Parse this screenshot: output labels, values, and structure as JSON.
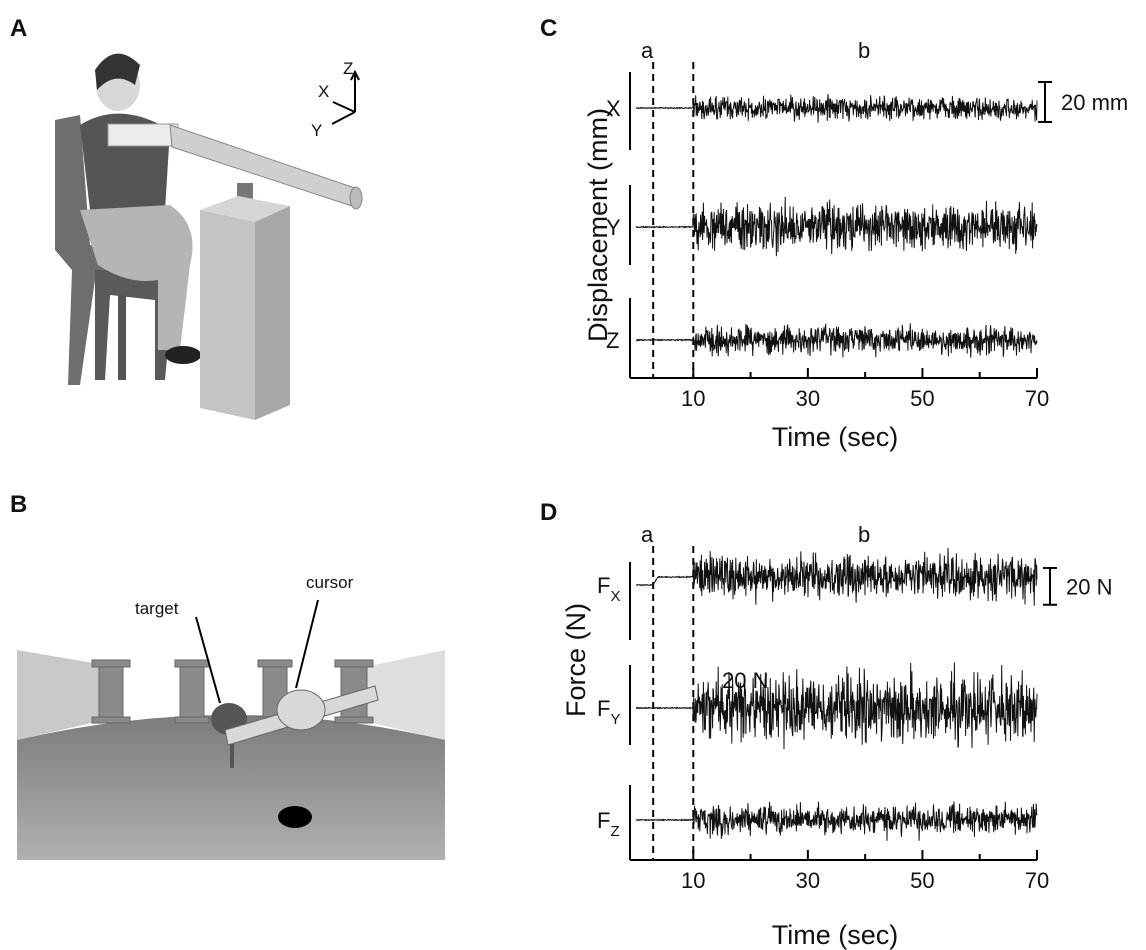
{
  "panels": {
    "A": {
      "label": "A",
      "axes": {
        "z": "Z",
        "x": "X",
        "y": "Y"
      }
    },
    "B": {
      "label": "B",
      "target": "target",
      "cursor": "cursor"
    },
    "C": {
      "label": "C",
      "period_a": "a",
      "period_b": "b",
      "ylabel": "Displacement (mm)",
      "traces": [
        {
          "name": "X"
        },
        {
          "name": "Y"
        },
        {
          "name": "Z"
        }
      ],
      "scale_bar": {
        "value": 20,
        "label": "20 mm"
      },
      "xlim": [
        0,
        70
      ],
      "xticks": [
        10,
        30,
        50,
        70
      ],
      "minor_xticks": [
        20,
        40,
        60
      ],
      "phase_bounds": [
        3,
        10
      ],
      "xlabel": "Time (sec)"
    },
    "D": {
      "label": "D",
      "period_a": "a",
      "period_b": "b",
      "ylabel": "Force (N)",
      "traces": [
        {
          "name": "F",
          "sub": "X"
        },
        {
          "name": "F",
          "sub": "Y"
        },
        {
          "name": "F",
          "sub": "Z"
        }
      ],
      "scale_bar": {
        "value": 20,
        "label": "20 N"
      },
      "stray_label": "20 N",
      "xlim": [
        0,
        70
      ],
      "xticks": [
        10,
        30,
        50,
        70
      ],
      "minor_xticks": [
        20,
        40,
        60
      ],
      "phase_bounds": [
        3,
        10
      ],
      "xlabel": "Time (sec)"
    }
  }
}
